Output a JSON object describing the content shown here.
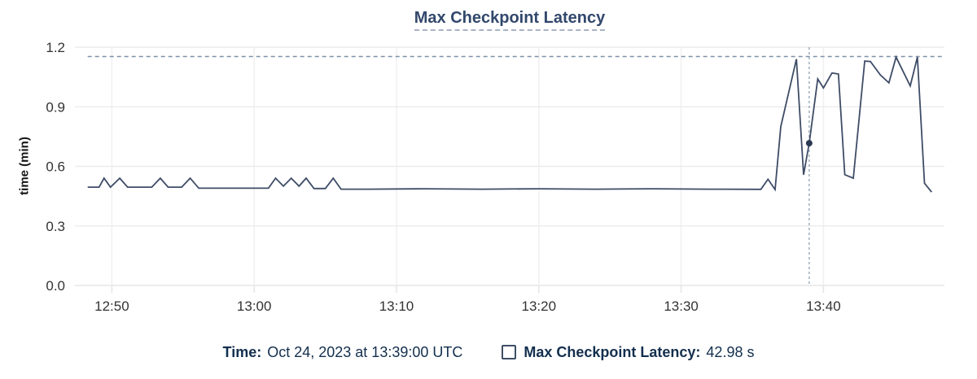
{
  "title": "Max Checkpoint Latency",
  "colors": {
    "series_line": "#3e4c66",
    "selected_dot": "#2b3a52",
    "max_reference_dash": "#7d92a9",
    "crosshair_dash": "#8ea1b5",
    "h_gridline": "#ebebeb",
    "v_gridline": "#f1f1f1",
    "axis_line": "#e6e6e6",
    "tick_text": "#333333",
    "title_text": "#32476b",
    "legend_text": "#132f4e"
  },
  "legend": {
    "time_label": "Time:",
    "time_value": "Oct 24, 2023 at 13:39:00 UTC",
    "series_label": "Max Checkpoint Latency:",
    "series_value": "42.98 s"
  },
  "chart_data": {
    "type": "line",
    "title": "Max Checkpoint Latency",
    "xlabel": "",
    "ylabel": "time (min)",
    "ylim": [
      0,
      1.2
    ],
    "y_ticks": [
      0.0,
      0.3,
      0.6,
      0.9,
      1.2
    ],
    "x_unit": "minutes after 12:00 UTC, Oct 24 2023",
    "xlim_minutes": [
      47.4,
      108.5
    ],
    "x_ticks": [
      {
        "t": 50,
        "label": "12:50"
      },
      {
        "t": 60,
        "label": "13:00"
      },
      {
        "t": 70,
        "label": "13:10"
      },
      {
        "t": 80,
        "label": "13:20"
      },
      {
        "t": 90,
        "label": "13:30"
      },
      {
        "t": 100,
        "label": "13:40"
      }
    ],
    "grid": true,
    "legend_position": "bottom",
    "max_reference_line": 1.153,
    "crosshair_minutes": 99.0,
    "selected_point": {
      "time": "13:39:00",
      "minutes": 99.0,
      "value_min": 0.7163,
      "value_label": "42.98 s"
    },
    "series": [
      {
        "name": "Max Checkpoint Latency",
        "points": [
          [
            48.3,
            0.495
          ],
          [
            49.1,
            0.495
          ],
          [
            49.45,
            0.54
          ],
          [
            49.9,
            0.495
          ],
          [
            50.55,
            0.54
          ],
          [
            51.1,
            0.495
          ],
          [
            52.8,
            0.495
          ],
          [
            53.4,
            0.54
          ],
          [
            53.95,
            0.495
          ],
          [
            54.9,
            0.495
          ],
          [
            55.5,
            0.54
          ],
          [
            56.1,
            0.49
          ],
          [
            58.0,
            0.49
          ],
          [
            60.0,
            0.49
          ],
          [
            61.0,
            0.49
          ],
          [
            61.5,
            0.54
          ],
          [
            62.05,
            0.5
          ],
          [
            62.6,
            0.54
          ],
          [
            63.15,
            0.5
          ],
          [
            63.65,
            0.54
          ],
          [
            64.2,
            0.488
          ],
          [
            65.0,
            0.488
          ],
          [
            65.55,
            0.54
          ],
          [
            66.1,
            0.485
          ],
          [
            68.0,
            0.485
          ],
          [
            72.0,
            0.487
          ],
          [
            76.0,
            0.485
          ],
          [
            80.0,
            0.487
          ],
          [
            84.0,
            0.485
          ],
          [
            88.0,
            0.487
          ],
          [
            92.0,
            0.485
          ],
          [
            95.6,
            0.484
          ],
          [
            96.1,
            0.535
          ],
          [
            96.6,
            0.483
          ],
          [
            97.0,
            0.8
          ],
          [
            98.1,
            1.14
          ],
          [
            98.6,
            0.558
          ],
          [
            99.0,
            0.7163
          ],
          [
            99.6,
            1.04
          ],
          [
            100.0,
            0.995
          ],
          [
            100.6,
            1.07
          ],
          [
            101.05,
            1.065
          ],
          [
            101.5,
            0.558
          ],
          [
            102.1,
            0.54
          ],
          [
            102.9,
            1.13
          ],
          [
            103.3,
            1.128
          ],
          [
            104.0,
            1.06
          ],
          [
            104.6,
            1.02
          ],
          [
            105.1,
            1.15
          ],
          [
            106.1,
            1.005
          ],
          [
            106.6,
            1.15
          ],
          [
            107.1,
            0.515
          ],
          [
            107.6,
            0.47
          ]
        ]
      }
    ]
  }
}
